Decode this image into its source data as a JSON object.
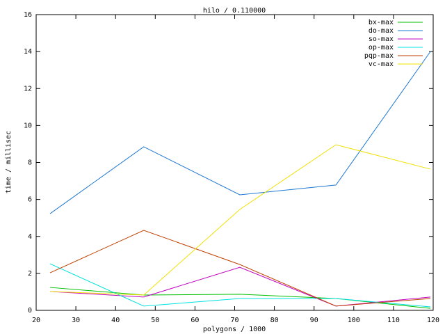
{
  "chart_data": {
    "type": "line",
    "title": "hilo / 0.110000",
    "x_label": "polygons / 1000",
    "y_label": "time / millisec",
    "x": [
      23.5,
      47.1,
      71.3,
      95.5,
      119.3
    ],
    "series": [
      {
        "name": "bx-max",
        "color": "#00c000",
        "values": [
          1.24,
          0.83,
          0.87,
          0.64,
          0.11
        ]
      },
      {
        "name": "do-max",
        "color": "#1e78d2",
        "values": [
          5.23,
          8.85,
          6.25,
          6.78,
          14.0
        ]
      },
      {
        "name": "so-max",
        "color": "#c000c0",
        "values": [
          1.02,
          0.72,
          2.33,
          0.23,
          0.72
        ]
      },
      {
        "name": "op-max",
        "color": "#00e0e0",
        "values": [
          2.52,
          0.23,
          0.64,
          0.64,
          0.19
        ]
      },
      {
        "name": "pqp-max",
        "color": "#c04000",
        "values": [
          2.03,
          4.33,
          2.48,
          0.23,
          0.64
        ]
      },
      {
        "name": "vc-max",
        "color": "#f0e000",
        "values": [
          1.02,
          0.83,
          5.46,
          8.96,
          7.64
        ]
      }
    ],
    "xlim": [
      20,
      120
    ],
    "xticks": [
      20,
      30,
      40,
      50,
      60,
      70,
      80,
      90,
      100,
      110,
      120
    ],
    "ylim": [
      0,
      16
    ],
    "yticks": [
      0,
      2,
      4,
      6,
      8,
      10,
      12,
      14,
      16
    ],
    "legend": "top-right"
  }
}
